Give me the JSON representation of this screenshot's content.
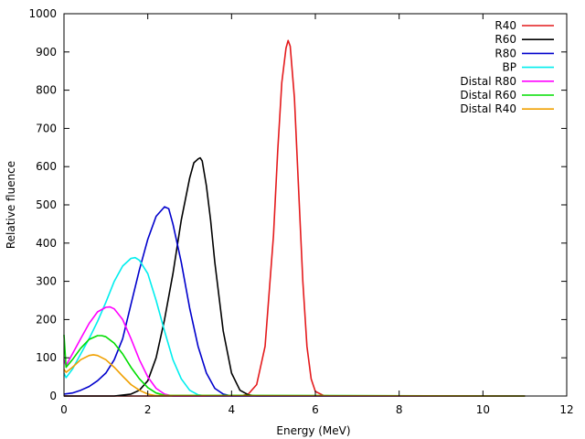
{
  "chart_data": {
    "type": "line",
    "title": "",
    "xlabel": "Energy (MeV)",
    "ylabel": "Relative fluence",
    "xlim": [
      0,
      12
    ],
    "ylim": [
      0,
      1000
    ],
    "xticks": [
      0,
      2,
      4,
      6,
      8,
      10,
      12
    ],
    "yticks": [
      0,
      100,
      200,
      300,
      400,
      500,
      600,
      700,
      800,
      900,
      1000
    ],
    "grid": false,
    "legend_position": "top-right",
    "series": [
      {
        "name": "R40",
        "color": "#e41a1c",
        "x": [
          0,
          4.2,
          4.4,
          4.6,
          4.8,
          5.0,
          5.1,
          5.2,
          5.3,
          5.35,
          5.4,
          5.5,
          5.6,
          5.7,
          5.8,
          5.9,
          6.0,
          6.2,
          6.5,
          11.0
        ],
        "y": [
          0,
          0,
          5,
          30,
          130,
          420,
          640,
          820,
          910,
          930,
          915,
          780,
          540,
          300,
          130,
          45,
          12,
          1,
          0,
          0
        ]
      },
      {
        "name": "R60",
        "color": "#000000",
        "x": [
          0,
          1.2,
          1.6,
          1.8,
          2.0,
          2.2,
          2.4,
          2.6,
          2.8,
          3.0,
          3.1,
          3.2,
          3.25,
          3.3,
          3.4,
          3.5,
          3.6,
          3.8,
          4.0,
          4.2,
          4.4,
          4.6,
          11.0
        ],
        "y": [
          0,
          0,
          5,
          15,
          40,
          100,
          200,
          320,
          460,
          570,
          610,
          620,
          623,
          615,
          550,
          460,
          350,
          170,
          60,
          15,
          3,
          0,
          0
        ]
      },
      {
        "name": "R80",
        "color": "#0000cc",
        "x": [
          0,
          0.2,
          0.4,
          0.6,
          0.8,
          1.0,
          1.2,
          1.4,
          1.6,
          1.8,
          2.0,
          2.2,
          2.4,
          2.5,
          2.6,
          2.8,
          3.0,
          3.2,
          3.4,
          3.6,
          3.8,
          4.0,
          11.0
        ],
        "y": [
          5,
          8,
          15,
          25,
          40,
          60,
          95,
          150,
          240,
          330,
          410,
          470,
          495,
          490,
          450,
          350,
          230,
          130,
          60,
          20,
          5,
          0,
          0
        ]
      },
      {
        "name": "BP",
        "color": "#00eeee",
        "x": [
          0,
          0.05,
          0.2,
          0.4,
          0.6,
          0.8,
          1.0,
          1.2,
          1.4,
          1.6,
          1.7,
          1.8,
          2.0,
          2.2,
          2.4,
          2.6,
          2.8,
          3.0,
          3.2,
          3.4,
          11.0
        ],
        "y": [
          60,
          48,
          70,
          110,
          150,
          195,
          245,
          300,
          340,
          360,
          362,
          355,
          320,
          250,
          170,
          95,
          45,
          15,
          3,
          0,
          0
        ]
      },
      {
        "name": "Distal R80",
        "color": "#ff00ff",
        "x": [
          0,
          0.05,
          0.2,
          0.4,
          0.6,
          0.8,
          1.0,
          1.1,
          1.2,
          1.4,
          1.6,
          1.8,
          2.0,
          2.2,
          2.4,
          2.6,
          11.0
        ],
        "y": [
          95,
          80,
          110,
          150,
          190,
          220,
          232,
          233,
          228,
          200,
          150,
          95,
          50,
          20,
          5,
          0,
          0
        ]
      },
      {
        "name": "Distal R60",
        "color": "#00dd00",
        "x": [
          0,
          0.05,
          0.2,
          0.4,
          0.6,
          0.8,
          0.9,
          1.0,
          1.2,
          1.4,
          1.6,
          1.8,
          2.0,
          2.2,
          2.4,
          11.0
        ],
        "y": [
          160,
          75,
          95,
          125,
          148,
          158,
          158,
          155,
          138,
          110,
          75,
          45,
          22,
          8,
          2,
          0
        ]
      },
      {
        "name": "Distal R40",
        "color": "#f0a000",
        "x": [
          0,
          0.05,
          0.2,
          0.4,
          0.6,
          0.7,
          0.8,
          1.0,
          1.2,
          1.4,
          1.6,
          1.8,
          2.0,
          2.2,
          11.0
        ],
        "y": [
          70,
          62,
          75,
          95,
          106,
          108,
          106,
          95,
          75,
          52,
          30,
          15,
          5,
          1,
          0
        ]
      }
    ]
  }
}
